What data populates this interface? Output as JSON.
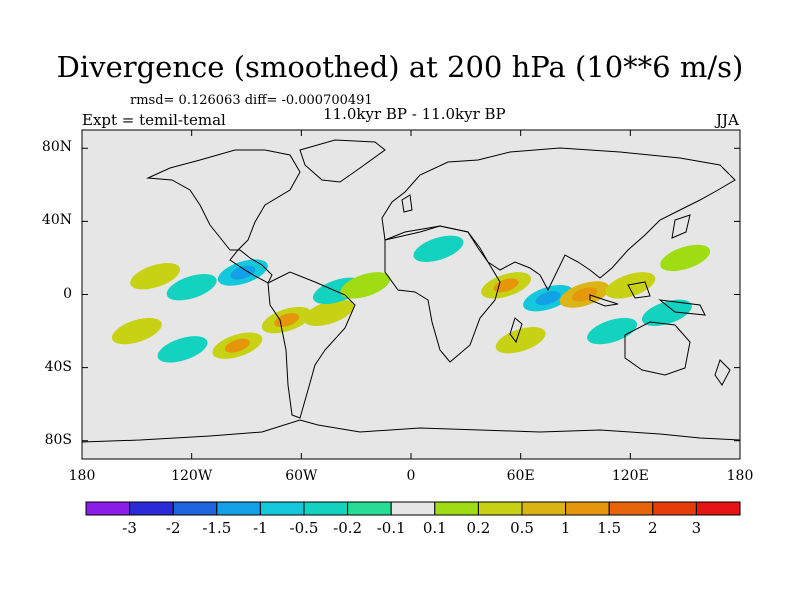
{
  "title": "Divergence (smoothed) at 200 hPa (10**6 m/s)",
  "stats_line": "rmsd= 0.126063  diff= -0.000700491",
  "experiment_label": "Expt = temil-temal",
  "period_label": "11.0kyr BP - 11.0kyr BP",
  "season_label": "JJA",
  "chart_data": {
    "type": "heatmap",
    "title": "Divergence (smoothed) at 200 hPa (10**6 m/s)",
    "units": "10**6 m/s",
    "xlabel": "",
    "ylabel": "",
    "xlim": [
      -180,
      180
    ],
    "ylim": [
      -90,
      90
    ],
    "x_ticks": [
      {
        "value": -180,
        "label": "180"
      },
      {
        "value": -120,
        "label": "120W"
      },
      {
        "value": -60,
        "label": "60W"
      },
      {
        "value": 0,
        "label": "0"
      },
      {
        "value": 60,
        "label": "60E"
      },
      {
        "value": 120,
        "label": "120E"
      },
      {
        "value": 180,
        "label": "180"
      }
    ],
    "y_ticks": [
      {
        "value": 80,
        "label": "80N"
      },
      {
        "value": 40,
        "label": "40N"
      },
      {
        "value": 0,
        "label": "0"
      },
      {
        "value": -40,
        "label": "40S"
      },
      {
        "value": -80,
        "label": "80S"
      }
    ],
    "colorbar": {
      "colors": [
        "#8a1ee6",
        "#2a2ad8",
        "#1e64dc",
        "#14a0e6",
        "#14c8dc",
        "#14d2c0",
        "#28dc96",
        "#e6e6e6",
        "#a0dc14",
        "#c8d214",
        "#dcb414",
        "#e6960a",
        "#e6640a",
        "#e63c0a",
        "#e61414"
      ],
      "labels": [
        "-3",
        "-2",
        "-1.5",
        "-1",
        "-0.5",
        "-0.2",
        "-0.1",
        "0.1",
        "0.2",
        "0.5",
        "1",
        "1.5",
        "2",
        "3"
      ]
    },
    "anomaly_regions": [
      {
        "lon": -140,
        "lat": 10,
        "value": 0.3
      },
      {
        "lon": -120,
        "lat": 4,
        "value": -0.3
      },
      {
        "lon": -92,
        "lat": 12,
        "value": -0.5
      },
      {
        "lon": -150,
        "lat": -20,
        "value": 0.3
      },
      {
        "lon": -125,
        "lat": -30,
        "value": -0.2
      },
      {
        "lon": -95,
        "lat": -28,
        "value": 0.5
      },
      {
        "lon": -68,
        "lat": -14,
        "value": 0.5
      },
      {
        "lon": -45,
        "lat": -10,
        "value": 0.3
      },
      {
        "lon": -40,
        "lat": 2,
        "value": -0.3
      },
      {
        "lon": -25,
        "lat": 5,
        "value": 0.2
      },
      {
        "lon": 15,
        "lat": 25,
        "value": -0.2
      },
      {
        "lon": 52,
        "lat": 5,
        "value": 0.5
      },
      {
        "lon": 75,
        "lat": -2,
        "value": -0.5
      },
      {
        "lon": 95,
        "lat": 0,
        "value": 0.6
      },
      {
        "lon": 120,
        "lat": 5,
        "value": 0.3
      },
      {
        "lon": 150,
        "lat": 20,
        "value": 0.2
      },
      {
        "lon": 140,
        "lat": -10,
        "value": -0.2
      },
      {
        "lon": 60,
        "lat": -25,
        "value": 0.3
      },
      {
        "lon": 110,
        "lat": -20,
        "value": -0.2
      }
    ]
  }
}
